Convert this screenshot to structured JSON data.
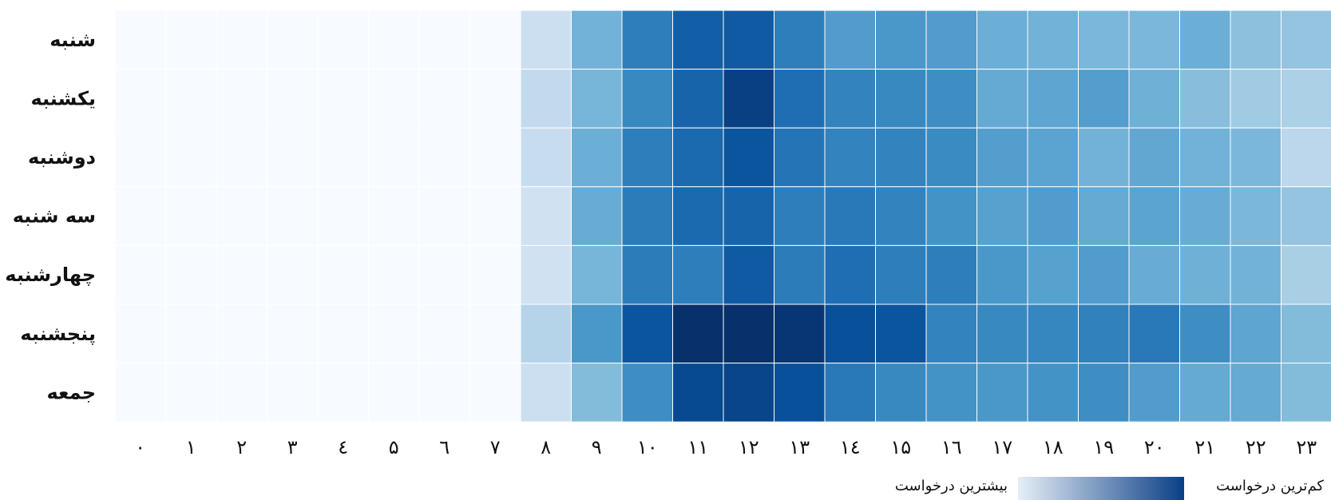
{
  "chart_data": {
    "type": "heatmap",
    "rows": [
      "شنبه",
      "یکشنبه",
      "دوشنبه",
      "سه شنبه",
      "چهارشنبه",
      "پنجشنبه",
      "جمعه"
    ],
    "columns": [
      "۰",
      "۱",
      "۲",
      "۳",
      "٤",
      "۵",
      "٦",
      "۷",
      "۸",
      "۹",
      "۱۰",
      "۱۱",
      "۱۲",
      "۱۳",
      "۱٤",
      "۱۵",
      "۱٦",
      "۱۷",
      "۱۸",
      "۱۹",
      "۲۰",
      "۲۱",
      "۲۲",
      "۲۳"
    ],
    "values": [
      [
        0,
        0,
        0,
        0,
        0,
        0,
        0,
        0,
        0.22,
        0.48,
        0.7,
        0.82,
        0.84,
        0.7,
        0.58,
        0.6,
        0.58,
        0.5,
        0.48,
        0.46,
        0.46,
        0.5,
        0.42,
        0.4
      ],
      [
        0,
        0,
        0,
        0,
        0,
        0,
        0,
        0,
        0.26,
        0.47,
        0.66,
        0.8,
        0.94,
        0.76,
        0.68,
        0.66,
        0.64,
        0.52,
        0.54,
        0.57,
        0.49,
        0.43,
        0.37,
        0.33
      ],
      [
        0,
        0,
        0,
        0,
        0,
        0,
        0,
        0,
        0.24,
        0.5,
        0.7,
        0.78,
        0.86,
        0.74,
        0.68,
        0.68,
        0.65,
        0.57,
        0.55,
        0.48,
        0.53,
        0.48,
        0.46,
        0.28
      ],
      [
        0,
        0,
        0,
        0,
        0,
        0,
        0,
        0,
        0.2,
        0.51,
        0.71,
        0.78,
        0.8,
        0.7,
        0.72,
        0.68,
        0.62,
        0.56,
        0.58,
        0.52,
        0.55,
        0.51,
        0.46,
        0.4
      ],
      [
        0,
        0,
        0,
        0,
        0,
        0,
        0,
        0,
        0.2,
        0.47,
        0.71,
        0.7,
        0.84,
        0.71,
        0.76,
        0.7,
        0.7,
        0.6,
        0.56,
        0.58,
        0.51,
        0.49,
        0.48,
        0.34
      ],
      [
        0,
        0,
        0,
        0,
        0,
        0,
        0,
        0,
        0.3,
        0.6,
        0.86,
        1.0,
        1.0,
        0.98,
        0.88,
        0.86,
        0.68,
        0.66,
        0.67,
        0.69,
        0.72,
        0.64,
        0.54,
        0.44
      ],
      [
        0,
        0,
        0,
        0,
        0,
        0,
        0,
        0,
        0.22,
        0.44,
        0.64,
        0.9,
        0.92,
        0.88,
        0.72,
        0.66,
        0.62,
        0.6,
        0.62,
        0.64,
        0.58,
        0.52,
        0.52,
        0.44
      ]
    ],
    "vmin": 0,
    "vmax": 1,
    "colorscale": [
      "#f7fbff",
      "#deebf7",
      "#c6dbef",
      "#9ecae1",
      "#6baed6",
      "#4292c6",
      "#2171b5",
      "#08519c",
      "#08306b"
    ],
    "legend": {
      "low_label": "کم‌ترین درخواست",
      "high_label": "بیشترین درخواست",
      "low_color": "#e6eef8",
      "high_color": "#0a3f86"
    },
    "grid_color": "#ffffff"
  }
}
